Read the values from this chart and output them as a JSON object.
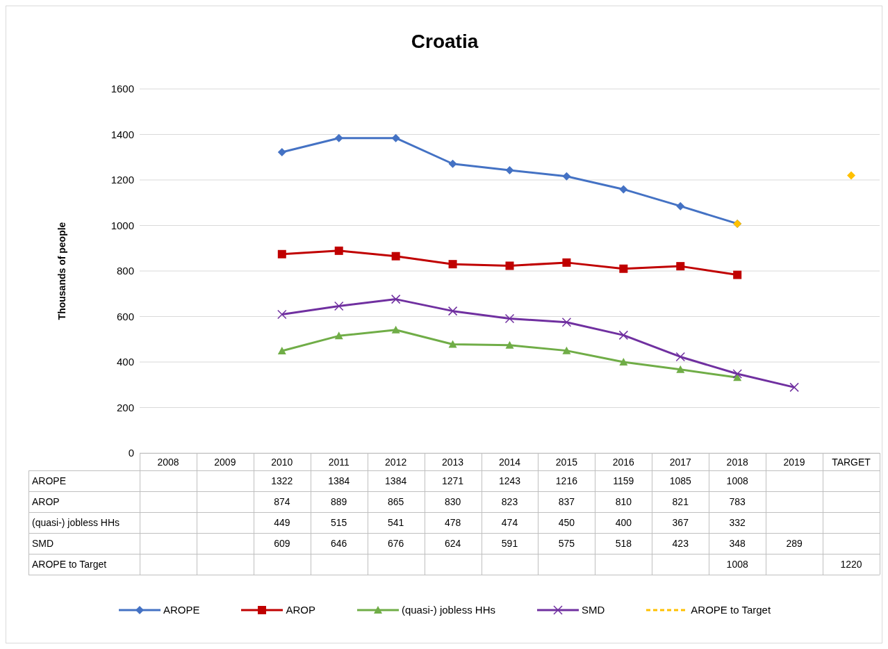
{
  "chart_data": {
    "type": "line",
    "title": "Croatia",
    "ylabel": "Thousands of people",
    "categories": [
      "2008",
      "2009",
      "2010",
      "2011",
      "2012",
      "2013",
      "2014",
      "2015",
      "2016",
      "2017",
      "2018",
      "2019",
      "TARGET"
    ],
    "series": [
      {
        "name": "AROPE",
        "color": "#4472c4",
        "marker": "diamond",
        "values": [
          null,
          null,
          1322,
          1384,
          1384,
          1271,
          1243,
          1216,
          1159,
          1085,
          1008,
          null,
          null
        ]
      },
      {
        "name": "AROP",
        "color": "#c00000",
        "marker": "square",
        "values": [
          null,
          null,
          874,
          889,
          865,
          830,
          823,
          837,
          810,
          821,
          783,
          null,
          null
        ]
      },
      {
        "name": "(quasi-) jobless HHs",
        "color": "#70ad47",
        "marker": "triangle",
        "values": [
          null,
          null,
          449,
          515,
          541,
          478,
          474,
          450,
          400,
          367,
          332,
          null,
          null
        ]
      },
      {
        "name": "SMD",
        "color": "#7030a0",
        "marker": "cross",
        "values": [
          null,
          null,
          609,
          646,
          676,
          624,
          591,
          575,
          518,
          423,
          348,
          289,
          null
        ]
      },
      {
        "name": "AROPE to Target",
        "type": "scatter",
        "color": "#ffc000",
        "line_style": "dashed",
        "marker": "diamond",
        "values": [
          null,
          null,
          null,
          null,
          null,
          null,
          null,
          null,
          null,
          null,
          1008,
          null,
          1220
        ]
      }
    ],
    "ylim": [
      0,
      1600
    ],
    "yticks": [
      0,
      200,
      400,
      600,
      800,
      1000,
      1200,
      1400,
      1600
    ],
    "grid": "y",
    "legend": "bottom",
    "data_labels": true
  }
}
